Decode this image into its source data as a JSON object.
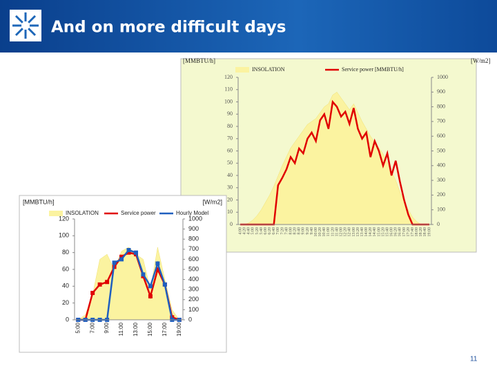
{
  "header": {
    "title": "And on more difficult days"
  },
  "page_number": "11",
  "chart_data": [
    {
      "type": "combo",
      "y_label": "[MMBTU/h]",
      "y2_label": "[W/m2]",
      "categories": [
        "4:00",
        "4:20",
        "4:40",
        "5:00",
        "5:20",
        "5:40",
        "6:00",
        "6:20",
        "6:40",
        "7:00",
        "7:20",
        "7:40",
        "8:00",
        "8:20",
        "8:40",
        "9:00",
        "9:20",
        "9:40",
        "10:00",
        "10:20",
        "10:40",
        "11:00",
        "11:20",
        "11:40",
        "12:00",
        "12:20",
        "12:40",
        "13:00",
        "13:20",
        "13:40",
        "14:00",
        "14:20",
        "14:40",
        "15:00",
        "15:20",
        "15:40",
        "16:00",
        "16:20",
        "16:40",
        "17:00",
        "17:20",
        "17:40",
        "18:00",
        "18:20",
        "18:40",
        "19:00"
      ],
      "ylim": [
        0,
        120
      ],
      "yticks": [
        0,
        10,
        20,
        30,
        40,
        50,
        60,
        70,
        80,
        90,
        100,
        110,
        120
      ],
      "y2lim": [
        0,
        1000
      ],
      "y2ticks": [
        0,
        100,
        200,
        300,
        400,
        500,
        600,
        700,
        800,
        900,
        1000
      ],
      "series": [
        {
          "name": "INSOLATION",
          "color": "#fbf3a0",
          "style": "area",
          "axis": "y2",
          "values": [
            0,
            0,
            10,
            30,
            60,
            100,
            150,
            200,
            260,
            330,
            400,
            460,
            520,
            560,
            600,
            640,
            680,
            700,
            720,
            760,
            800,
            820,
            880,
            900,
            860,
            820,
            780,
            820,
            760,
            700,
            650,
            600,
            560,
            520,
            480,
            420,
            360,
            300,
            220,
            160,
            100,
            50,
            20,
            0,
            0,
            0
          ]
        },
        {
          "name": "Service power [MMBTU/h]",
          "color": "#e00000",
          "style": "line",
          "axis": "y",
          "values": [
            0,
            0,
            0,
            0,
            0,
            0,
            0,
            0,
            0,
            32,
            38,
            45,
            55,
            50,
            62,
            58,
            70,
            75,
            68,
            85,
            90,
            78,
            100,
            96,
            88,
            92,
            82,
            95,
            78,
            70,
            75,
            55,
            68,
            60,
            48,
            58,
            40,
            52,
            35,
            20,
            8,
            0,
            0,
            0,
            0,
            0
          ]
        }
      ]
    },
    {
      "type": "combo",
      "y_label": "[MMBTU/h]",
      "y2_label": "[W/m2]",
      "categories": [
        "5:00",
        null,
        "7:00",
        null,
        "9:00",
        null,
        "11:00",
        null,
        "13:00",
        null,
        "15:00",
        null,
        "17:00",
        null,
        "19:00"
      ],
      "ylim": [
        0,
        120
      ],
      "yticks": [
        0,
        20,
        40,
        60,
        80,
        100,
        120
      ],
      "y2lim": [
        0,
        1000
      ],
      "y2ticks": [
        0,
        100,
        200,
        300,
        400,
        500,
        600,
        700,
        800,
        900,
        1000
      ],
      "series": [
        {
          "name": "INSOLATION",
          "color": "#fbf3a0",
          "style": "area",
          "axis": "y2",
          "values": [
            0,
            50,
            250,
            600,
            650,
            500,
            680,
            720,
            650,
            600,
            300,
            720,
            400,
            100,
            0
          ]
        },
        {
          "name": "Service power",
          "color": "#e00000",
          "style": "line",
          "marker": "square",
          "axis": "y",
          "values": [
            0,
            0,
            32,
            42,
            45,
            63,
            75,
            80,
            78,
            52,
            28,
            60,
            42,
            3,
            0
          ]
        },
        {
          "name": "Hourly Model",
          "color": "#1f5fbf",
          "style": "line",
          "marker": "square",
          "axis": "y",
          "values": [
            0,
            0,
            0,
            0,
            0,
            68,
            72,
            83,
            80,
            54,
            40,
            67,
            42,
            0,
            0
          ]
        }
      ]
    }
  ]
}
